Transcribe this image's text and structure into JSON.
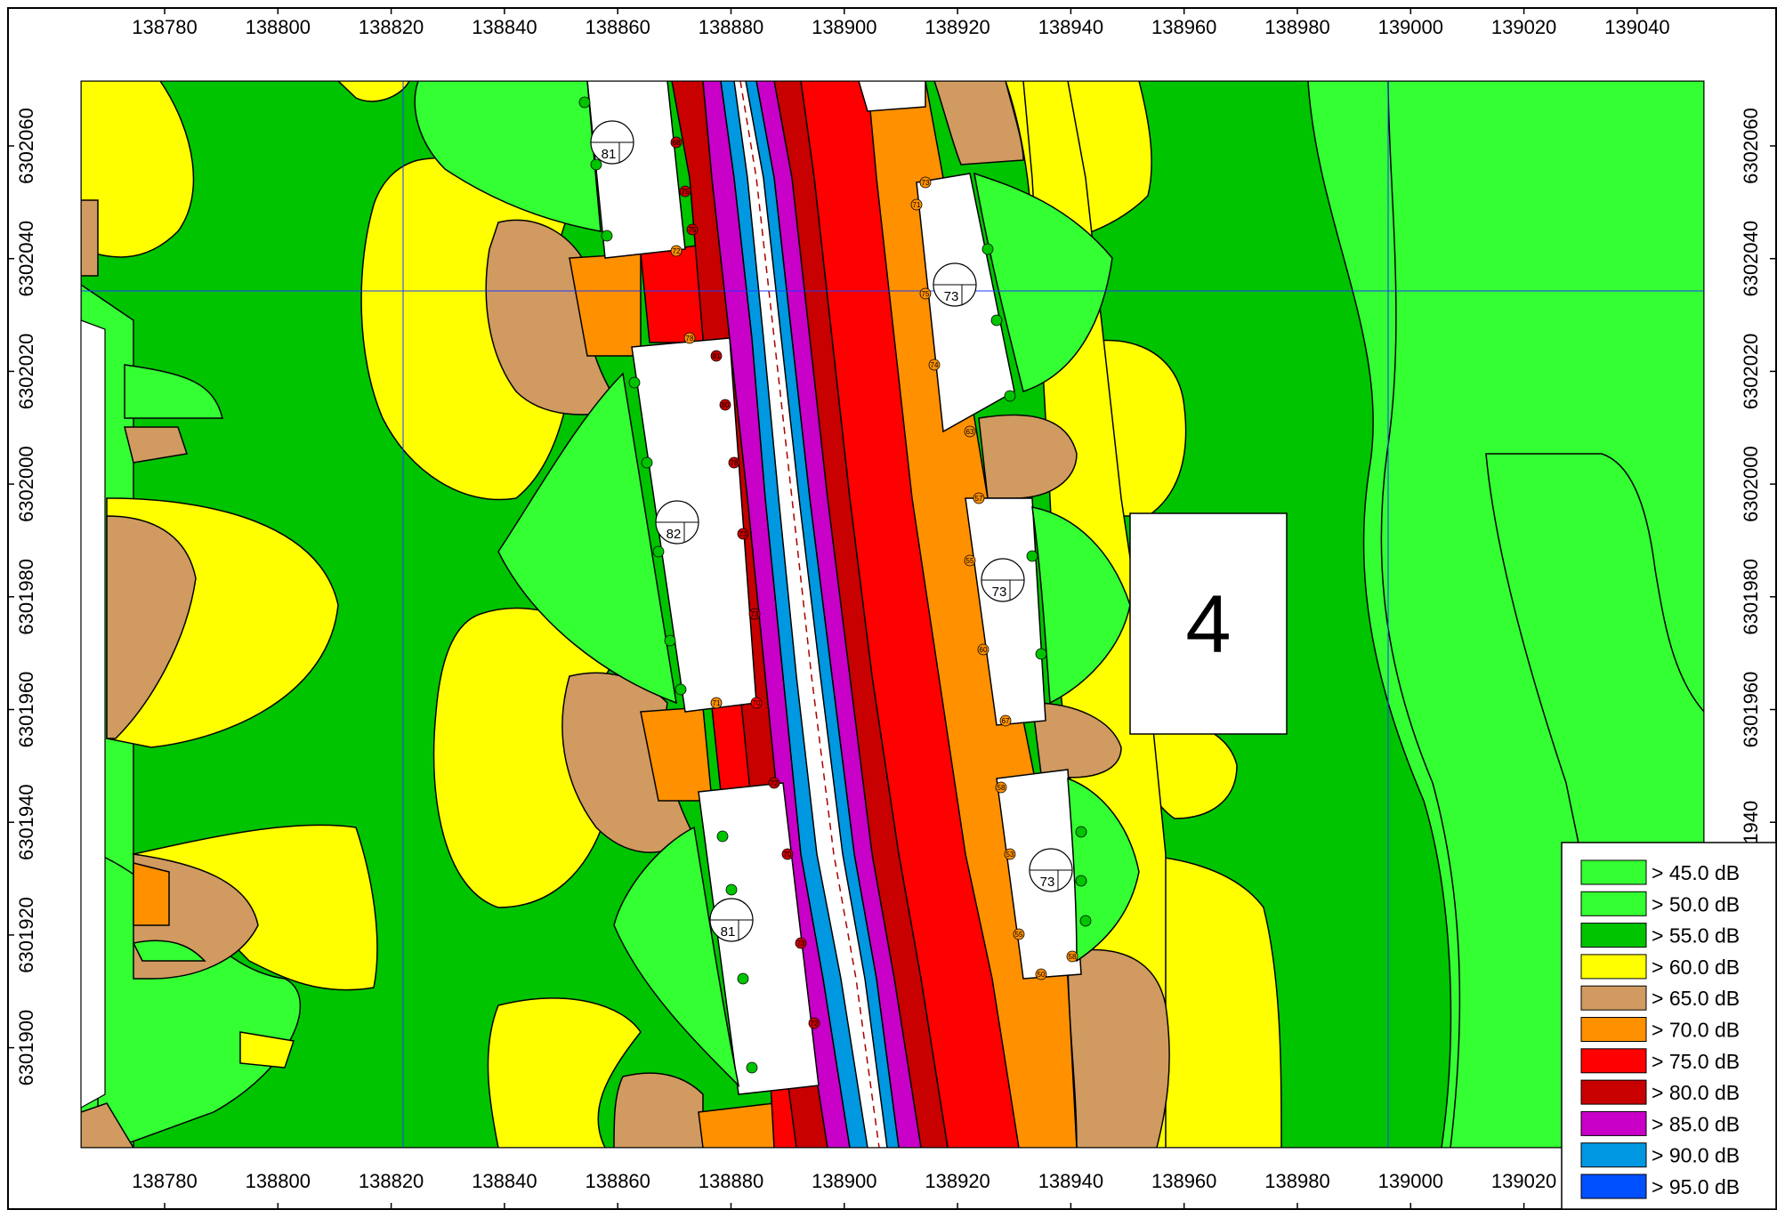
{
  "map": {
    "x_ticks": [
      "138780",
      "138800",
      "138820",
      "138840",
      "138860",
      "138880",
      "138900",
      "138920",
      "138940",
      "138960",
      "138980",
      "139000",
      "139020",
      "139040"
    ],
    "x_ticks_bottom": [
      "138780",
      "138800",
      "138820",
      "138840",
      "138860",
      "138880",
      "138900",
      "138920",
      "138940",
      "138960",
      "138980",
      "139000",
      "139020"
    ],
    "y_ticks": [
      "6302060",
      "6302040",
      "6302020",
      "6302000",
      "6301980",
      "6301960",
      "6301940",
      "6301920",
      "6301900"
    ],
    "y_ticks_right": [
      "6302060",
      "6302040",
      "6302020",
      "6302000",
      "6301980",
      "6301960",
      "1940"
    ],
    "section_label": "4",
    "buildings": [
      {
        "id": "bldg-nw",
        "label": "81"
      },
      {
        "id": "bldg-w",
        "label": "82"
      },
      {
        "id": "bldg-sw",
        "label": "81"
      },
      {
        "id": "bldg-ne",
        "label": "73"
      },
      {
        "id": "bldg-e",
        "label": "73"
      },
      {
        "id": "bldg-se",
        "label": "73"
      }
    ],
    "legend": [
      {
        "label": ">  45.0 dB",
        "color": "#33ff33"
      },
      {
        "label": ">  50.0 dB",
        "color": "#33ff33"
      },
      {
        "label": ">  55.0 dB",
        "color": "#00c400"
      },
      {
        "label": ">  60.0 dB",
        "color": "#ffff00"
      },
      {
        "label": ">  65.0 dB",
        "color": "#d09a60"
      },
      {
        "label": ">  70.0 dB",
        "color": "#ff9000"
      },
      {
        "label": ">  75.0 dB",
        "color": "#ff0000"
      },
      {
        "label": ">  80.0 dB",
        "color": "#c80000"
      },
      {
        "label": ">  85.0 dB",
        "color": "#c800c8"
      },
      {
        "label": ">  90.0 dB",
        "color": "#0098e0"
      },
      {
        "label": ">  95.0 dB",
        "color": "#0050ff"
      }
    ],
    "receiver_values": [
      "68",
      "75",
      "75",
      "72",
      "78",
      "81",
      "80",
      "78",
      "73",
      "73",
      "71",
      "70",
      "72",
      "70",
      "73",
      "72",
      "73",
      "71",
      "75",
      "74",
      "63",
      "57",
      "55",
      "60",
      "67",
      "58",
      "53",
      "55",
      "50",
      "58"
    ]
  }
}
